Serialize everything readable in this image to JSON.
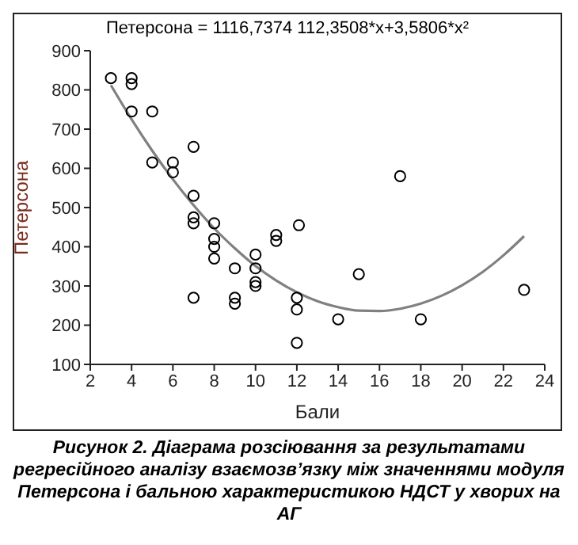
{
  "chart_data": {
    "type": "scatter",
    "title": "Петерсона = 1116,7374 112,3508*x+3,5806*x²",
    "xlabel": "Бали",
    "ylabel": "Петерсона",
    "xlim": [
      2,
      24
    ],
    "xticks": [
      2,
      4,
      6,
      8,
      10,
      12,
      14,
      16,
      18,
      20,
      22,
      24
    ],
    "ylim": [
      100,
      900
    ],
    "yticks": [
      100,
      200,
      300,
      400,
      500,
      600,
      700,
      800,
      900
    ],
    "grid": false,
    "marker": "circle",
    "annotations": [
      "Рисунок 2. Діаграма розсіювання за результатами регресійного аналізу взаємозв’язку між значеннями модуля Петерсона і бальною характеристикою НДСТ у хворих на АГ"
    ],
    "series": [
      {
        "color": "#000000",
        "x": [
          3,
          4,
          4,
          4,
          5,
          5,
          6,
          6,
          7,
          7,
          7,
          7,
          7,
          8,
          8,
          8,
          8,
          9,
          9,
          9,
          10,
          10,
          10,
          10,
          11,
          11,
          12.1,
          12,
          12,
          12,
          14,
          15,
          17,
          18,
          23
        ],
        "values": [
          830,
          830,
          815,
          745,
          745,
          615,
          615,
          590,
          655,
          530,
          475,
          460,
          270,
          460,
          420,
          400,
          370,
          345,
          270,
          255,
          380,
          345,
          310,
          300,
          430,
          415,
          455,
          270,
          240,
          155,
          215,
          330,
          580,
          215,
          290
        ]
      },
      {
        "type": "line",
        "color": "#808080",
        "marker": "none",
        "x": [
          3,
          4,
          5,
          6,
          7,
          8,
          9,
          10,
          11,
          12,
          13,
          14,
          15,
          16,
          17,
          18,
          19,
          20,
          21,
          22,
          23
        ],
        "values": [
          812,
          725,
          645,
          572,
          506,
          447,
          396,
          351,
          314,
          284,
          261,
          246,
          237,
          236,
          242,
          255,
          275,
          302,
          336,
          378,
          427
        ]
      }
    ]
  }
}
